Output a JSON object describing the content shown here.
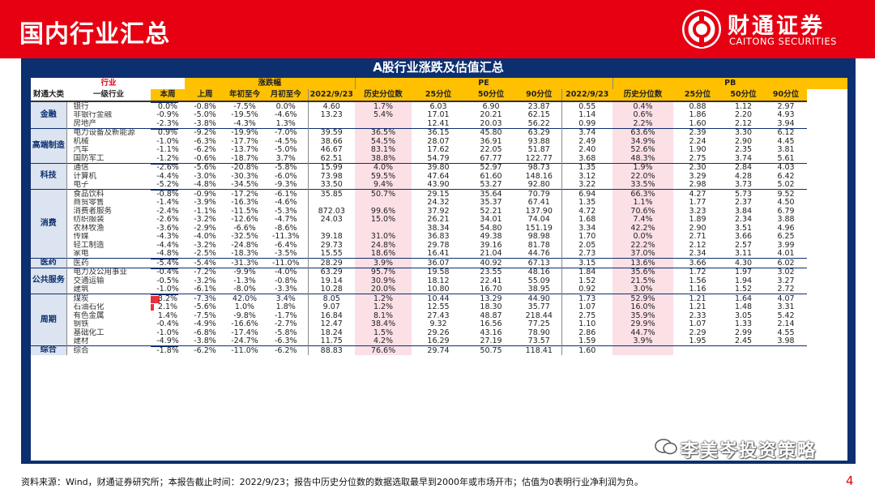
{
  "header": {
    "title": "国内行业汇总",
    "brand_cn": "财通证券",
    "brand_en": "CAITONG SECURITIES"
  },
  "colors": {
    "brand_red": "#e60012",
    "panel_navy": "#0c2f70",
    "header_yellow": "#ffc000",
    "pink_cell": "#fbe0e6",
    "up_bar": "#e8313c",
    "down_bar": "#3cb24c"
  },
  "panel": {
    "title": "A股行业涨跌及估值汇总"
  },
  "table": {
    "group_headers": {
      "industry": "行业",
      "change": "涨跌幅",
      "pe": "PE",
      "pb": "PB"
    },
    "columns": [
      "财通大类",
      "一级行业",
      "本周",
      "上周",
      "年初至今",
      "月初至今",
      "2022/9/23",
      "历史分位数",
      "25分位",
      "50分位",
      "90分位",
      "2022/9/23",
      "历史分位数",
      "25分位",
      "50分位",
      "90分位"
    ],
    "groups": [
      {
        "name": "金融",
        "rows": [
          {
            "name": "银行",
            "wk": "0.0%",
            "lwk": "-0.8%",
            "ytd": "-7.5%",
            "mtd": "0.0%",
            "pe": "4.60",
            "pe_pct": "1.7%",
            "pe25": "6.03",
            "pe50": "6.90",
            "pe90": "23.87",
            "pb": "0.55",
            "pb_pct": "0.4%",
            "pb25": "0.88",
            "pb50": "1.12",
            "pb90": "2.97",
            "bar": 0.0
          },
          {
            "name": "非银行金融",
            "wk": "-0.9%",
            "lwk": "-5.0%",
            "ytd": "-19.5%",
            "mtd": "-4.6%",
            "pe": "13.23",
            "pe_pct": "5.4%",
            "pe25": "17.01",
            "pe50": "20.21",
            "pe90": "62.15",
            "pb": "1.14",
            "pb_pct": "0.6%",
            "pb25": "1.86",
            "pb50": "2.20",
            "pb90": "4.93",
            "bar": -0.9
          },
          {
            "name": "房地产",
            "wk": "-2.3%",
            "lwk": "-3.8%",
            "ytd": "-4.3%",
            "mtd": "1.3%",
            "pe": "",
            "pe_pct": "",
            "pe25": "12.41",
            "pe50": "20.03",
            "pe90": "56.22",
            "pb": "0.99",
            "pb_pct": "2.2%",
            "pb25": "1.60",
            "pb50": "2.12",
            "pb90": "3.94",
            "bar": -2.3
          }
        ]
      },
      {
        "name": "高端制造",
        "rows": [
          {
            "name": "电力设备及新能源",
            "wk": "0.9%",
            "lwk": "-9.2%",
            "ytd": "-19.9%",
            "mtd": "-7.0%",
            "pe": "39.59",
            "pe_pct": "36.5%",
            "pe25": "36.15",
            "pe50": "45.80",
            "pe90": "63.29",
            "pb": "3.74",
            "pb_pct": "63.6%",
            "pb25": "2.39",
            "pb50": "3.30",
            "pb90": "6.12",
            "bar": 0.9
          },
          {
            "name": "机械",
            "wk": "-1.0%",
            "lwk": "-6.3%",
            "ytd": "-17.7%",
            "mtd": "-4.5%",
            "pe": "38.66",
            "pe_pct": "54.5%",
            "pe25": "28.07",
            "pe50": "36.91",
            "pe90": "93.88",
            "pb": "2.49",
            "pb_pct": "34.9%",
            "pb25": "2.24",
            "pb50": "2.90",
            "pb90": "4.45",
            "bar": -1.0
          },
          {
            "name": "汽车",
            "wk": "-1.1%",
            "lwk": "-6.2%",
            "ytd": "-13.7%",
            "mtd": "-5.0%",
            "pe": "46.67",
            "pe_pct": "83.1%",
            "pe25": "17.62",
            "pe50": "22.05",
            "pe90": "51.87",
            "pb": "2.40",
            "pb_pct": "52.6%",
            "pb25": "1.90",
            "pb50": "2.35",
            "pb90": "3.81",
            "bar": -1.1
          },
          {
            "name": "国防军工",
            "wk": "-1.2%",
            "lwk": "-0.6%",
            "ytd": "-18.7%",
            "mtd": "3.7%",
            "pe": "62.51",
            "pe_pct": "38.8%",
            "pe25": "54.79",
            "pe50": "67.77",
            "pe90": "122.77",
            "pb": "3.68",
            "pb_pct": "48.3%",
            "pb25": "2.75",
            "pb50": "3.74",
            "pb90": "5.61",
            "bar": -1.2
          }
        ]
      },
      {
        "name": "科技",
        "rows": [
          {
            "name": "通信",
            "wk": "-2.6%",
            "lwk": "-5.6%",
            "ytd": "-20.8%",
            "mtd": "-5.8%",
            "pe": "15.99",
            "pe_pct": "4.0%",
            "pe25": "39.80",
            "pe50": "52.97",
            "pe90": "98.73",
            "pb": "1.35",
            "pb_pct": "1.9%",
            "pb25": "2.30",
            "pb50": "2.84",
            "pb90": "4.03",
            "bar": -2.6
          },
          {
            "name": "计算机",
            "wk": "-4.4%",
            "lwk": "-3.0%",
            "ytd": "-30.3%",
            "mtd": "-6.0%",
            "pe": "73.98",
            "pe_pct": "59.5%",
            "pe25": "47.64",
            "pe50": "61.60",
            "pe90": "148.16",
            "pb": "3.12",
            "pb_pct": "22.0%",
            "pb25": "3.29",
            "pb50": "4.28",
            "pb90": "6.42",
            "bar": -4.4
          },
          {
            "name": "电子",
            "wk": "-5.2%",
            "lwk": "-4.8%",
            "ytd": "-34.5%",
            "mtd": "-9.3%",
            "pe": "33.50",
            "pe_pct": "9.4%",
            "pe25": "43.90",
            "pe50": "53.27",
            "pe90": "92.80",
            "pb": "3.22",
            "pb_pct": "33.5%",
            "pb25": "2.98",
            "pb50": "3.73",
            "pb90": "5.02",
            "bar": -5.2
          }
        ]
      },
      {
        "name": "消费",
        "rows": [
          {
            "name": "食品饮料",
            "wk": "-0.8%",
            "lwk": "-0.9%",
            "ytd": "-17.2%",
            "mtd": "-6.1%",
            "pe": "35.85",
            "pe_pct": "50.7%",
            "pe25": "29.15",
            "pe50": "35.64",
            "pe90": "70.79",
            "pb": "6.94",
            "pb_pct": "66.3%",
            "pb25": "4.27",
            "pb50": "5.73",
            "pb90": "9.52",
            "bar": -0.8
          },
          {
            "name": "商贸零售",
            "wk": "-1.4%",
            "lwk": "-3.9%",
            "ytd": "-16.3%",
            "mtd": "-4.6%",
            "pe": "",
            "pe_pct": "",
            "pe25": "24.32",
            "pe50": "35.37",
            "pe90": "67.41",
            "pb": "1.35",
            "pb_pct": "1.1%",
            "pb25": "1.77",
            "pb50": "2.37",
            "pb90": "4.50",
            "bar": -1.4
          },
          {
            "name": "消费者服务",
            "wk": "-2.4%",
            "lwk": "-1.1%",
            "ytd": "-11.5%",
            "mtd": "-5.3%",
            "pe": "872.03",
            "pe_pct": "99.6%",
            "pe25": "37.92",
            "pe50": "52.21",
            "pe90": "137.90",
            "pb": "4.72",
            "pb_pct": "70.6%",
            "pb25": "3.23",
            "pb50": "3.84",
            "pb90": "6.79",
            "bar": -2.4
          },
          {
            "name": "纺织服装",
            "wk": "-2.6%",
            "lwk": "-3.2%",
            "ytd": "-12.6%",
            "mtd": "-4.7%",
            "pe": "24.03",
            "pe_pct": "15.0%",
            "pe25": "26.21",
            "pe50": "34.01",
            "pe90": "74.04",
            "pb": "1.68",
            "pb_pct": "7.4%",
            "pb25": "1.89",
            "pb50": "2.34",
            "pb90": "3.88",
            "bar": -2.6
          },
          {
            "name": "农林牧渔",
            "wk": "-3.6%",
            "lwk": "-2.9%",
            "ytd": "-6.6%",
            "mtd": "-8.6%",
            "pe": "",
            "pe_pct": "",
            "pe25": "38.34",
            "pe50": "54.80",
            "pe90": "151.19",
            "pb": "3.34",
            "pb_pct": "42.2%",
            "pb25": "2.90",
            "pb50": "3.51",
            "pb90": "4.96",
            "bar": -3.6
          },
          {
            "name": "传媒",
            "wk": "-4.3%",
            "lwk": "-4.0%",
            "ytd": "-32.5%",
            "mtd": "-11.3%",
            "pe": "39.18",
            "pe_pct": "31.0%",
            "pe25": "36.83",
            "pe50": "49.38",
            "pe90": "98.98",
            "pb": "1.70",
            "pb_pct": "0.0%",
            "pb25": "2.71",
            "pb50": "3.66",
            "pb90": "6.25",
            "bar": -4.3
          },
          {
            "name": "轻工制造",
            "wk": "-4.4%",
            "lwk": "-3.2%",
            "ytd": "-24.8%",
            "mtd": "-6.4%",
            "pe": "29.73",
            "pe_pct": "24.8%",
            "pe25": "29.78",
            "pe50": "39.16",
            "pe90": "81.78",
            "pb": "2.05",
            "pb_pct": "22.2%",
            "pb25": "2.12",
            "pb50": "2.57",
            "pb90": "3.99",
            "bar": -4.4
          },
          {
            "name": "家电",
            "wk": "-4.8%",
            "lwk": "-2.5%",
            "ytd": "-18.3%",
            "mtd": "-3.5%",
            "pe": "15.55",
            "pe_pct": "18.6%",
            "pe25": "16.41",
            "pe50": "21.04",
            "pe90": "44.76",
            "pb": "2.73",
            "pb_pct": "37.0%",
            "pb25": "2.34",
            "pb50": "3.11",
            "pb90": "4.01",
            "bar": -4.8
          }
        ]
      },
      {
        "name": "医药",
        "rows": [
          {
            "name": "医药",
            "wk": "-5.4%",
            "lwk": "-5.4%",
            "ytd": "-31.3%",
            "mtd": "-11.0%",
            "pe": "28.29",
            "pe_pct": "3.9%",
            "pe25": "36.07",
            "pe50": "40.92",
            "pe90": "67.13",
            "pb": "3.15",
            "pb_pct": "13.6%",
            "pb25": "3.66",
            "pb50": "4.30",
            "pb90": "6.02",
            "bar": -5.4
          }
        ]
      },
      {
        "name": "公共服务",
        "rows": [
          {
            "name": "电力及公用事业",
            "wk": "-0.4%",
            "lwk": "-7.2%",
            "ytd": "-9.9%",
            "mtd": "-4.0%",
            "pe": "63.29",
            "pe_pct": "95.7%",
            "pe25": "19.58",
            "pe50": "23.55",
            "pe90": "48.16",
            "pb": "1.84",
            "pb_pct": "35.6%",
            "pb25": "1.72",
            "pb50": "1.97",
            "pb90": "3.02",
            "bar": -0.4
          },
          {
            "name": "交通运输",
            "wk": "-0.5%",
            "lwk": "-3.2%",
            "ytd": "-1.3%",
            "mtd": "-0.8%",
            "pe": "19.14",
            "pe_pct": "30.9%",
            "pe25": "18.12",
            "pe50": "22.41",
            "pe90": "55.09",
            "pb": "1.52",
            "pb_pct": "21.5%",
            "pb25": "1.56",
            "pb50": "1.94",
            "pb90": "3.27",
            "bar": -0.5
          },
          {
            "name": "建筑",
            "wk": "-1.0%",
            "lwk": "-6.1%",
            "ytd": "-8.0%",
            "mtd": "-3.3%",
            "pe": "10.28",
            "pe_pct": "20.0%",
            "pe25": "10.80",
            "pe50": "16.70",
            "pe90": "38.95",
            "pb": "0.92",
            "pb_pct": "3.0%",
            "pb25": "1.16",
            "pb50": "1.52",
            "pb90": "2.72",
            "bar": -1.0
          }
        ]
      },
      {
        "name": "周期",
        "rows": [
          {
            "name": "煤炭",
            "wk": "3.2%",
            "lwk": "-7.3%",
            "ytd": "42.0%",
            "mtd": "3.4%",
            "pe": "8.05",
            "pe_pct": "1.2%",
            "pe25": "10.44",
            "pe50": "13.29",
            "pe90": "44.90",
            "pb": "1.73",
            "pb_pct": "52.9%",
            "pb25": "1.21",
            "pb50": "1.64",
            "pb90": "4.07",
            "bar": 3.2
          },
          {
            "name": "石油石化",
            "wk": "2.1%",
            "lwk": "-5.6%",
            "ytd": "1.0%",
            "mtd": "1.8%",
            "pe": "9.07",
            "pe_pct": "1.2%",
            "pe25": "12.55",
            "pe50": "18.30",
            "pe90": "35.77",
            "pb": "1.07",
            "pb_pct": "16.0%",
            "pb25": "1.21",
            "pb50": "1.48",
            "pb90": "3.31",
            "bar": 2.1
          },
          {
            "name": "有色金属",
            "wk": "1.4%",
            "lwk": "-7.5%",
            "ytd": "-9.8%",
            "mtd": "-1.7%",
            "pe": "16.84",
            "pe_pct": "8.1%",
            "pe25": "27.43",
            "pe50": "48.87",
            "pe90": "218.44",
            "pb": "2.75",
            "pb_pct": "35.9%",
            "pb25": "2.33",
            "pb50": "3.05",
            "pb90": "5.42",
            "bar": 1.4
          },
          {
            "name": "钢铁",
            "wk": "-0.4%",
            "lwk": "-4.9%",
            "ytd": "-16.6%",
            "mtd": "-2.7%",
            "pe": "12.47",
            "pe_pct": "38.4%",
            "pe25": "9.32",
            "pe50": "16.56",
            "pe90": "77.25",
            "pb": "1.10",
            "pb_pct": "29.9%",
            "pb25": "1.07",
            "pb50": "1.33",
            "pb90": "2.14",
            "bar": -0.4
          },
          {
            "name": "基础化工",
            "wk": "-1.0%",
            "lwk": "-6.8%",
            "ytd": "-17.4%",
            "mtd": "-5.8%",
            "pe": "18.24",
            "pe_pct": "1.5%",
            "pe25": "29.26",
            "pe50": "43.16",
            "pe90": "78.90",
            "pb": "2.86",
            "pb_pct": "44.7%",
            "pb25": "2.29",
            "pb50": "2.99",
            "pb90": "4.55",
            "bar": -1.0
          },
          {
            "name": "建材",
            "wk": "-4.9%",
            "lwk": "-3.8%",
            "ytd": "-24.7%",
            "mtd": "-6.3%",
            "pe": "11.75",
            "pe_pct": "4.2%",
            "pe25": "16.29",
            "pe50": "27.19",
            "pe90": "73.57",
            "pb": "1.59",
            "pb_pct": "3.9%",
            "pb25": "1.95",
            "pb50": "2.45",
            "pb90": "3.98",
            "bar": -4.9
          }
        ]
      },
      {
        "name": "综合",
        "rows": [
          {
            "name": "综合",
            "wk": "-1.8%",
            "lwk": "-6.2%",
            "ytd": "-11.0%",
            "mtd": "-6.2%",
            "pe": "88.83",
            "pe_pct": "76.6%",
            "pe25": "29.74",
            "pe50": "50.75",
            "pe90": "118.41",
            "pb": "1.60",
            "pb_pct": "",
            "pb25": "",
            "pb50": "",
            "pb90": "",
            "bar": -1.8
          }
        ]
      }
    ]
  },
  "footer": {
    "source": "资料来源：Wind，财通证券研究所；本报告截止时间：2022/9/23；报告中历史分位数的数据选取最早到2000年或市场开市；估值为0表明行业净利润为负。",
    "page": "4"
  },
  "watermark": {
    "text": "李美岑投资策略"
  }
}
